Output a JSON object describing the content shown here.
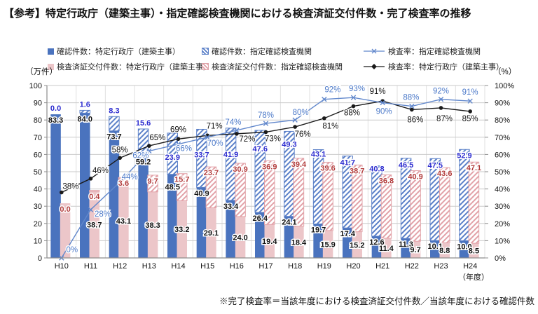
{
  "title": "【参考】特定行政庁（建築主事）・指定確認検査機関における検査済証交付件数・完了検査率の推移",
  "footnote": "※完了検査率＝当該年度における検査済証交付件数／当該年度における確認件数",
  "axis": {
    "left_unit": "（万件）",
    "right_unit": "（%）",
    "x_unit": "（年度）",
    "left_ticks": [
      "0",
      "10",
      "20",
      "30",
      "40",
      "50",
      "60",
      "70",
      "80",
      "90",
      "100"
    ],
    "right_ticks": [
      "0%",
      "10%",
      "20%",
      "30%",
      "40%",
      "50%",
      "60%",
      "70%",
      "80%",
      "90%",
      "100%"
    ]
  },
  "colors": {
    "solid_blue": "#4a73be",
    "hatch_blue": "#5b80c8",
    "solid_pink": "#ecc6c9",
    "hatch_pink": "#e2a2a8",
    "line_blue": "#6288cc",
    "line_black": "#1a1a1a",
    "label_blue": "#2b2bcf",
    "label_red": "#b23c3c",
    "label_black": "#111111",
    "pct_blue": "#4d7ac9",
    "grid": "#c9c9c9",
    "separator": "#dfdfdf",
    "axis_line": "#8c8c8c"
  },
  "chart_data": {
    "type": "bar",
    "subtype": "stacked-bar-with-lines",
    "categories": [
      "H10",
      "H11",
      "H12",
      "H13",
      "H14",
      "H15",
      "H16",
      "H17",
      "H18",
      "H19",
      "H20",
      "H21",
      "H22",
      "H23",
      "H24"
    ],
    "ylim_left": [
      0,
      100
    ],
    "ylim_right": [
      0,
      100
    ],
    "grid": true,
    "legend_position": "top",
    "series": [
      {
        "name": "確認件数：特定行政庁（建築主事）",
        "type": "bar",
        "stack": "確認件数",
        "style": "solid-blue",
        "values": [
          83.3,
          84.0,
          73.7,
          59.2,
          48.5,
          40.9,
          33.4,
          26.4,
          24.1,
          19.7,
          17.4,
          12.6,
          11.3,
          10.1,
          10.0
        ],
        "labels": [
          "83.3",
          "84.0",
          "73.7",
          "59.2",
          "48.5",
          "40.9",
          "33.4",
          "26.4",
          "24.1",
          "19.7",
          "17.4",
          "12.6",
          "11.3",
          "10.1",
          "10.0"
        ]
      },
      {
        "name": "確認件数：指定確認検査機関",
        "type": "bar",
        "stack": "確認件数",
        "style": "hatch-blue",
        "values": [
          0.0,
          1.6,
          8.3,
          15.6,
          23.9,
          33.7,
          41.9,
          47.6,
          49.3,
          43.1,
          41.7,
          40.8,
          46.5,
          47.5,
          52.9
        ],
        "labels": [
          "0.0",
          "1.6",
          "8.3",
          "15.6",
          "23.9",
          "33.7",
          "41.9",
          "47.6",
          "49.3",
          "43.1",
          "41.7",
          "40.8",
          "46.5",
          "47.5",
          "52.9"
        ]
      },
      {
        "name": "検査済証交付件数：特定行政庁（建築主事）",
        "type": "bar",
        "stack": "検査済証交付件数",
        "style": "solid-pink",
        "values": [
          31.7,
          38.7,
          43.1,
          38.3,
          33.2,
          29.1,
          24.0,
          19.4,
          18.4,
          15.9,
          15.2,
          11.4,
          9.7,
          8.8,
          8.5
        ],
        "labels": [
          "",
          "38.7",
          "43.1",
          "38.3",
          "33.2",
          "29.1",
          "24.0",
          "19.4",
          "18.4",
          "15.9",
          "15.2",
          "11.4",
          "9.7",
          "8.8",
          "8.5"
        ]
      },
      {
        "name": "検査済証交付件数：指定確認検査機関",
        "type": "bar",
        "stack": "検査済証交付件数",
        "style": "hatch-pink",
        "values": [
          0.0,
          0.4,
          3.6,
          9.7,
          15.7,
          23.7,
          30.9,
          36.9,
          39.4,
          39.6,
          38.7,
          36.8,
          40.9,
          43.6,
          47.1
        ],
        "labels": [
          "0.0",
          "0.4",
          "3.6",
          "9.7",
          "15.7",
          "23.7",
          "30.9",
          "36.9",
          "39.4",
          "39.6",
          "38.7",
          "36.8",
          "40.9",
          "43.6",
          "47.1"
        ]
      },
      {
        "name": "検査率：指定確認検査機関",
        "type": "line",
        "style": "line-x-blue",
        "values": [
          0,
          28,
          44,
          62,
          66,
          70,
          74,
          78,
          80,
          92,
          93,
          90,
          88,
          92,
          91
        ],
        "labels": [
          "0%",
          "28%",
          "44%",
          "62%",
          "66%",
          "70%",
          "74%",
          "78%",
          "80%",
          "92%",
          "93%",
          "90%",
          "88%",
          "92%",
          "91%"
        ]
      },
      {
        "name": "検査率：特定行政庁（建築主事）",
        "type": "line",
        "style": "line-dot-black",
        "values": [
          38,
          46,
          58,
          65,
          69,
          71,
          72,
          73,
          76,
          81,
          88,
          91,
          86,
          87,
          85
        ],
        "labels": [
          "38%",
          "46%",
          "58%",
          "65%",
          "69%",
          "71%",
          "72%",
          "73%",
          "76%",
          "81%",
          "88%",
          "91%",
          "86%",
          "87%",
          "85%"
        ]
      }
    ]
  }
}
